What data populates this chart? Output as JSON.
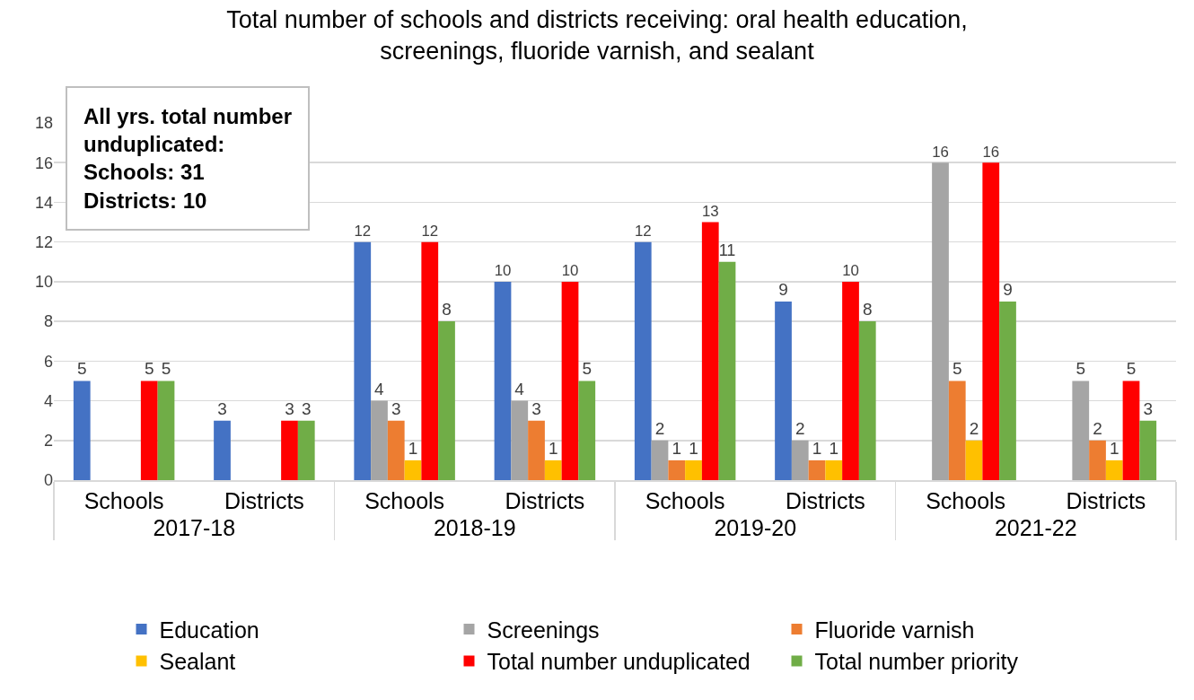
{
  "chart_data": {
    "type": "bar",
    "title": "Total number of schools and districts receiving: oral health education, screenings, fluoride varnish, and sealant",
    "categories": [
      "Schools",
      "Districts",
      "Schools",
      "Districts",
      "Schools",
      "Districts",
      "Schools",
      "Districts"
    ],
    "series": [
      {
        "name": "Education",
        "color": "#4472c4",
        "values": [
          5,
          3,
          12,
          10,
          12,
          9,
          null,
          null
        ]
      },
      {
        "name": "Screenings",
        "color": "#a5a5a5",
        "values": [
          null,
          null,
          4,
          4,
          2,
          2,
          16,
          5
        ]
      },
      {
        "name": "Fluoride varnish",
        "color": "#ed7d31",
        "values": [
          null,
          null,
          3,
          3,
          1,
          1,
          5,
          2
        ]
      },
      {
        "name": "Sealant",
        "color": "#ffc000",
        "values": [
          null,
          null,
          1,
          1,
          1,
          1,
          2,
          1
        ]
      },
      {
        "name": "Total number unduplicated",
        "color": "#ff0000",
        "values": [
          5,
          3,
          12,
          10,
          13,
          10,
          16,
          5
        ]
      },
      {
        "name": "Total number priority",
        "color": "#70ad47",
        "values": [
          5,
          3,
          8,
          5,
          11,
          8,
          9,
          3
        ]
      }
    ],
    "annotations": [
      "All yrs. total number\nunduplicated:\nSchools: 31\nDistricts: 10",
      "2017-18",
      "2018-19",
      "2019-20",
      "2021-22"
    ],
    "ylim": [
      0,
      18
    ],
    "yticks": [
      0,
      2,
      4,
      6,
      8,
      10,
      12,
      14,
      16,
      18
    ],
    "grid": "y",
    "legend": "bottom",
    "data_labels": true
  }
}
